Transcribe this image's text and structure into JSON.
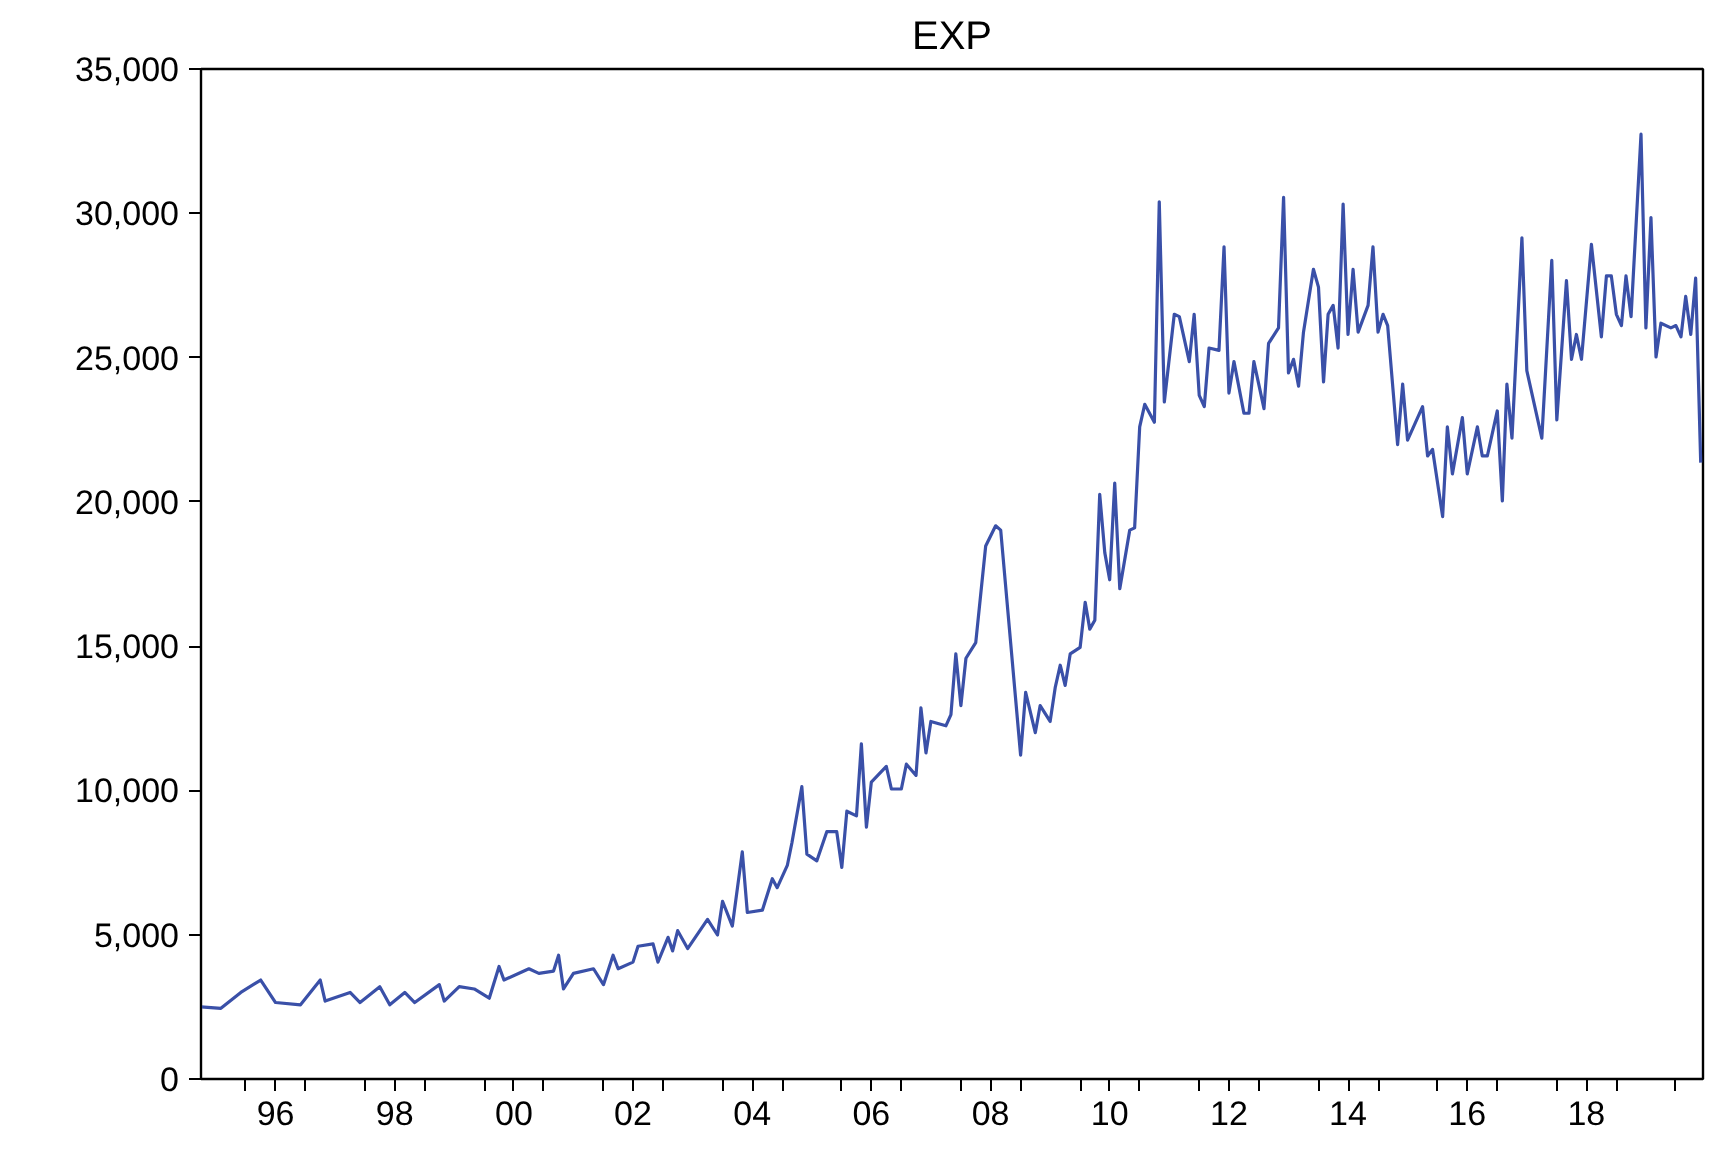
{
  "chart_data": {
    "type": "line",
    "title": "EXP",
    "x": [
      "1995-04",
      "1995-08",
      "1995-12",
      "1996-04",
      "1996-07",
      "1996-12",
      "1997-04",
      "1997-05",
      "1997-10",
      "1997-12",
      "1998-04",
      "1998-06",
      "1998-09",
      "1998-11",
      "1999-04",
      "1999-05",
      "1999-08",
      "1999-11",
      "2000-02",
      "2000-04",
      "2000-05",
      "2000-10",
      "2000-12",
      "2001-03",
      "2001-04",
      "2001-05",
      "2001-07",
      "2001-11",
      "2002-01",
      "2002-03",
      "2002-04",
      "2002-07",
      "2002-08",
      "2002-11",
      "2002-12",
      "2003-02",
      "2003-03",
      "2003-04",
      "2003-06",
      "2003-10",
      "2003-12",
      "2004-01",
      "2004-03",
      "2004-05",
      "2004-06",
      "2004-09",
      "2004-11",
      "2004-12",
      "2005-02",
      "2005-03",
      "2005-05",
      "2005-06",
      "2005-08",
      "2005-10",
      "2005-12",
      "2006-01",
      "2006-02",
      "2006-04",
      "2006-05",
      "2006-06",
      "2006-07",
      "2006-10",
      "2006-11",
      "2007-01",
      "2007-02",
      "2007-04",
      "2007-05",
      "2007-06",
      "2007-07",
      "2007-10",
      "2007-11",
      "2007-12",
      "2008-01",
      "2008-02",
      "2008-04",
      "2008-06",
      "2008-08",
      "2008-09",
      "2009-01",
      "2009-02",
      "2009-04",
      "2009-05",
      "2009-07",
      "2009-08",
      "2009-09",
      "2009-10",
      "2009-11",
      "2010-01",
      "2010-02",
      "2010-03",
      "2010-04",
      "2010-05",
      "2010-06",
      "2010-07",
      "2010-08",
      "2010-09",
      "2010-11",
      "2010-12",
      "2011-01",
      "2011-02",
      "2011-04",
      "2011-05",
      "2011-06",
      "2011-08",
      "2011-09",
      "2011-11",
      "2011-12",
      "2012-01",
      "2012-02",
      "2012-03",
      "2012-05",
      "2012-06",
      "2012-07",
      "2012-08",
      "2012-10",
      "2012-11",
      "2012-12",
      "2013-02",
      "2013-03",
      "2013-05",
      "2013-06",
      "2013-07",
      "2013-08",
      "2013-09",
      "2013-10",
      "2013-12",
      "2014-01",
      "2014-02",
      "2014-03",
      "2014-04",
      "2014-05",
      "2014-06",
      "2014-07",
      "2014-08",
      "2014-09",
      "2014-11",
      "2014-12",
      "2015-01",
      "2015-02",
      "2015-03",
      "2015-05",
      "2015-06",
      "2015-07",
      "2015-08",
      "2015-10",
      "2015-11",
      "2015-12",
      "2016-02",
      "2016-03",
      "2016-04",
      "2016-06",
      "2016-07",
      "2016-09",
      "2016-10",
      "2016-11",
      "2017-01",
      "2017-02",
      "2017-03",
      "2017-04",
      "2017-06",
      "2017-07",
      "2017-10",
      "2017-12",
      "2018-01",
      "2018-03",
      "2018-04",
      "2018-05",
      "2018-06",
      "2018-08",
      "2018-10",
      "2018-11",
      "2018-12",
      "2019-01",
      "2019-02",
      "2019-03",
      "2019-04",
      "2019-06",
      "2019-07",
      "2019-08",
      "2019-09",
      "2019-10",
      "2019-12",
      "2020-01",
      "2020-02",
      "2020-03",
      "2020-04",
      "2020-05",
      "2020-06"
    ],
    "series": [
      {
        "color": "#3a50a8",
        "values": [
          2500,
          2450,
          3000,
          3430,
          2650,
          2570,
          3430,
          2700,
          3000,
          2650,
          3200,
          2570,
          3000,
          2650,
          3270,
          2700,
          3200,
          3120,
          2800,
          3900,
          3430,
          3820,
          3660,
          3740,
          4290,
          3120,
          3660,
          3820,
          3270,
          4290,
          3820,
          4050,
          4600,
          4680,
          4050,
          4910,
          4440,
          5140,
          4520,
          5530,
          4990,
          6160,
          5300,
          7870,
          5770,
          5850,
          6940,
          6630,
          7400,
          8180,
          10130,
          7790,
          7560,
          8570,
          8570,
          7330,
          9280,
          9120,
          11610,
          8730,
          10290,
          10830,
          10050,
          10050,
          10910,
          10520,
          12860,
          11300,
          12390,
          12240,
          12630,
          14730,
          12940,
          14580,
          15120,
          18470,
          19170,
          19020,
          11220,
          13400,
          12000,
          12940,
          12390,
          13560,
          14340,
          13640,
          14730,
          14960,
          16520,
          15590,
          15900,
          20260,
          18240,
          17300,
          20650,
          16990,
          19020,
          19100,
          22600,
          23380,
          22760,
          30400,
          23460,
          26500,
          26420,
          24860,
          26500,
          23690,
          23300,
          25330,
          25250,
          28840,
          23770,
          24860,
          23070,
          23070,
          24860,
          23230,
          25490,
          26030,
          30550,
          24470,
          24940,
          24010,
          25880,
          28060,
          27440,
          24160,
          26500,
          26810,
          25330,
          30320,
          25800,
          28060,
          25880,
          26810,
          28840,
          25880,
          26500,
          26110,
          21980,
          24080,
          22140,
          22530,
          23300,
          21590,
          21820,
          19490,
          22600,
          20970,
          22920,
          20970,
          22600,
          21590,
          21590,
          23150,
          20030,
          24080,
          22210,
          29150,
          24550,
          22210,
          28370,
          22840,
          27670,
          24940,
          25800,
          24940,
          28920,
          25720,
          27830,
          27830,
          26500,
          26110,
          27830,
          26420,
          32740,
          26030,
          29850,
          25020,
          26190,
          26030,
          26110,
          25720,
          27120,
          25800,
          27750,
          21360
        ]
      }
    ],
    "xlim": [
      "1995-04-01",
      "2020-06-15"
    ],
    "xticks": [
      {
        "value": "1996-01",
        "label": null
      },
      {
        "value": "1996-07",
        "label": "96"
      },
      {
        "value": "1997-01",
        "label": null
      },
      {
        "value": "1998-01",
        "label": null
      },
      {
        "value": "1998-07",
        "label": "98"
      },
      {
        "value": "1999-01",
        "label": null
      },
      {
        "value": "2000-01",
        "label": null
      },
      {
        "value": "2000-07",
        "label": "00"
      },
      {
        "value": "2001-01",
        "label": null
      },
      {
        "value": "2002-01",
        "label": null
      },
      {
        "value": "2002-07",
        "label": "02"
      },
      {
        "value": "2003-01",
        "label": null
      },
      {
        "value": "2004-01",
        "label": null
      },
      {
        "value": "2004-07",
        "label": "04"
      },
      {
        "value": "2005-01",
        "label": null
      },
      {
        "value": "2006-01",
        "label": null
      },
      {
        "value": "2006-07",
        "label": "06"
      },
      {
        "value": "2007-01",
        "label": null
      },
      {
        "value": "2008-01",
        "label": null
      },
      {
        "value": "2008-07",
        "label": "08"
      },
      {
        "value": "2009-01",
        "label": null
      },
      {
        "value": "2010-01",
        "label": null
      },
      {
        "value": "2010-07",
        "label": "10"
      },
      {
        "value": "2011-01",
        "label": null
      },
      {
        "value": "2012-01",
        "label": null
      },
      {
        "value": "2012-07",
        "label": "12"
      },
      {
        "value": "2013-01",
        "label": null
      },
      {
        "value": "2014-01",
        "label": null
      },
      {
        "value": "2014-07",
        "label": "14"
      },
      {
        "value": "2015-01",
        "label": null
      },
      {
        "value": "2016-01",
        "label": null
      },
      {
        "value": "2016-07",
        "label": "16"
      },
      {
        "value": "2017-01",
        "label": null
      },
      {
        "value": "2018-01",
        "label": null
      },
      {
        "value": "2018-07",
        "label": "18"
      },
      {
        "value": "2019-01",
        "label": null
      },
      {
        "value": "2020-01",
        "label": null
      }
    ],
    "ylim": [
      0,
      35000
    ],
    "yticks": [
      {
        "value": 0,
        "label": "0"
      },
      {
        "value": 5000,
        "label": "5,000"
      },
      {
        "value": 10000,
        "label": "10,000"
      },
      {
        "value": 15000,
        "label": "15,000"
      },
      {
        "value": 20000,
        "label": "20,000"
      },
      {
        "value": 25000,
        "label": "25,000"
      },
      {
        "value": 30000,
        "label": "30,000"
      },
      {
        "value": 35000,
        "label": "35,000"
      }
    ],
    "grid": false,
    "marker": "none",
    "line_style": "solid"
  }
}
